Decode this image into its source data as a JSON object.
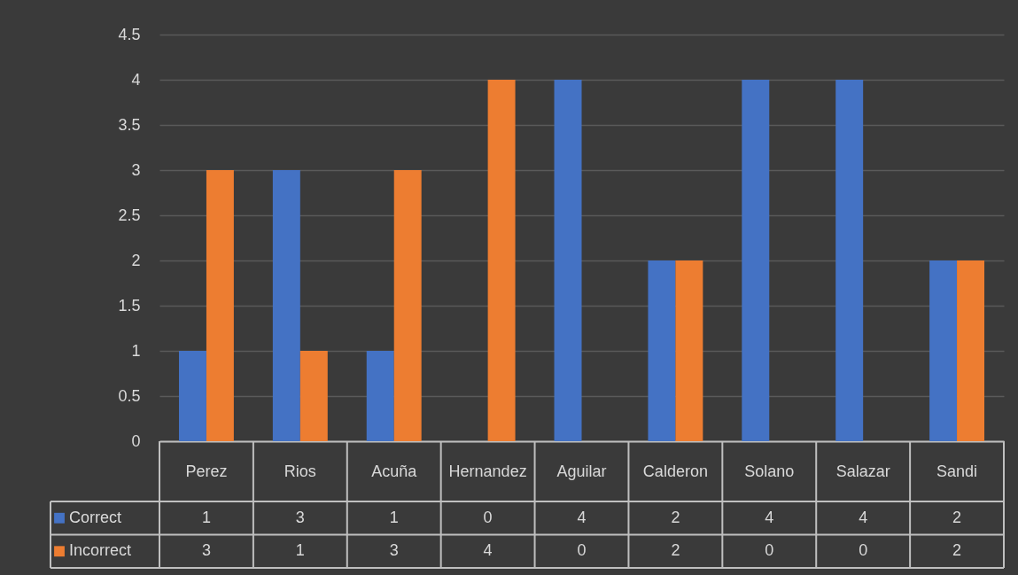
{
  "chart_data": {
    "type": "bar",
    "categories": [
      "Perez",
      "Rios",
      "Acuña",
      "Hernandez",
      "Aguilar",
      "Calderon",
      "Solano",
      "Salazar",
      "Sandi"
    ],
    "series": [
      {
        "name": "Correct",
        "color": "#4472c4",
        "values": [
          1,
          3,
          1,
          0,
          4,
          2,
          4,
          4,
          2
        ]
      },
      {
        "name": "Incorrect",
        "color": "#ed7d31",
        "values": [
          3,
          1,
          3,
          4,
          0,
          2,
          0,
          0,
          2
        ]
      }
    ],
    "ylim": [
      0,
      4.5
    ],
    "yticks": [
      0,
      0.5,
      1,
      1.5,
      2,
      2.5,
      3,
      3.5,
      4,
      4.5
    ],
    "grid": "y",
    "legend": "bottom",
    "data_labels": true
  }
}
